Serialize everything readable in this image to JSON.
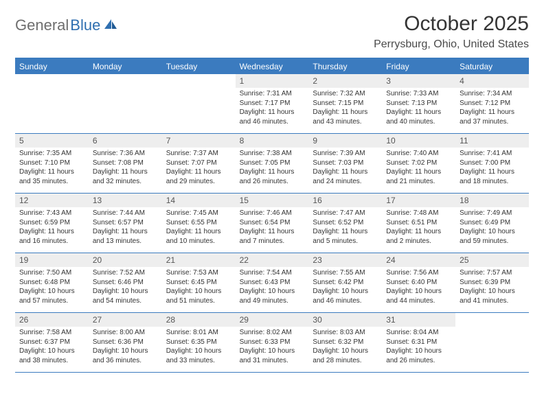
{
  "logo": {
    "part1": "General",
    "part2": "Blue"
  },
  "title": "October 2025",
  "location": "Perrysburg, Ohio, United States",
  "weekdays": [
    "Sunday",
    "Monday",
    "Tuesday",
    "Wednesday",
    "Thursday",
    "Friday",
    "Saturday"
  ],
  "colors": {
    "header_bar": "#3b7bbf",
    "daynum_bg": "#eeeeee",
    "logo_gray": "#6e6e6e",
    "logo_blue": "#2f6fb0"
  },
  "weeks": [
    [
      {
        "n": "",
        "sr": "",
        "ss": "",
        "dl": ""
      },
      {
        "n": "",
        "sr": "",
        "ss": "",
        "dl": ""
      },
      {
        "n": "",
        "sr": "",
        "ss": "",
        "dl": ""
      },
      {
        "n": "1",
        "sr": "Sunrise: 7:31 AM",
        "ss": "Sunset: 7:17 PM",
        "dl": "Daylight: 11 hours and 46 minutes."
      },
      {
        "n": "2",
        "sr": "Sunrise: 7:32 AM",
        "ss": "Sunset: 7:15 PM",
        "dl": "Daylight: 11 hours and 43 minutes."
      },
      {
        "n": "3",
        "sr": "Sunrise: 7:33 AM",
        "ss": "Sunset: 7:13 PM",
        "dl": "Daylight: 11 hours and 40 minutes."
      },
      {
        "n": "4",
        "sr": "Sunrise: 7:34 AM",
        "ss": "Sunset: 7:12 PM",
        "dl": "Daylight: 11 hours and 37 minutes."
      }
    ],
    [
      {
        "n": "5",
        "sr": "Sunrise: 7:35 AM",
        "ss": "Sunset: 7:10 PM",
        "dl": "Daylight: 11 hours and 35 minutes."
      },
      {
        "n": "6",
        "sr": "Sunrise: 7:36 AM",
        "ss": "Sunset: 7:08 PM",
        "dl": "Daylight: 11 hours and 32 minutes."
      },
      {
        "n": "7",
        "sr": "Sunrise: 7:37 AM",
        "ss": "Sunset: 7:07 PM",
        "dl": "Daylight: 11 hours and 29 minutes."
      },
      {
        "n": "8",
        "sr": "Sunrise: 7:38 AM",
        "ss": "Sunset: 7:05 PM",
        "dl": "Daylight: 11 hours and 26 minutes."
      },
      {
        "n": "9",
        "sr": "Sunrise: 7:39 AM",
        "ss": "Sunset: 7:03 PM",
        "dl": "Daylight: 11 hours and 24 minutes."
      },
      {
        "n": "10",
        "sr": "Sunrise: 7:40 AM",
        "ss": "Sunset: 7:02 PM",
        "dl": "Daylight: 11 hours and 21 minutes."
      },
      {
        "n": "11",
        "sr": "Sunrise: 7:41 AM",
        "ss": "Sunset: 7:00 PM",
        "dl": "Daylight: 11 hours and 18 minutes."
      }
    ],
    [
      {
        "n": "12",
        "sr": "Sunrise: 7:43 AM",
        "ss": "Sunset: 6:59 PM",
        "dl": "Daylight: 11 hours and 16 minutes."
      },
      {
        "n": "13",
        "sr": "Sunrise: 7:44 AM",
        "ss": "Sunset: 6:57 PM",
        "dl": "Daylight: 11 hours and 13 minutes."
      },
      {
        "n": "14",
        "sr": "Sunrise: 7:45 AM",
        "ss": "Sunset: 6:55 PM",
        "dl": "Daylight: 11 hours and 10 minutes."
      },
      {
        "n": "15",
        "sr": "Sunrise: 7:46 AM",
        "ss": "Sunset: 6:54 PM",
        "dl": "Daylight: 11 hours and 7 minutes."
      },
      {
        "n": "16",
        "sr": "Sunrise: 7:47 AM",
        "ss": "Sunset: 6:52 PM",
        "dl": "Daylight: 11 hours and 5 minutes."
      },
      {
        "n": "17",
        "sr": "Sunrise: 7:48 AM",
        "ss": "Sunset: 6:51 PM",
        "dl": "Daylight: 11 hours and 2 minutes."
      },
      {
        "n": "18",
        "sr": "Sunrise: 7:49 AM",
        "ss": "Sunset: 6:49 PM",
        "dl": "Daylight: 10 hours and 59 minutes."
      }
    ],
    [
      {
        "n": "19",
        "sr": "Sunrise: 7:50 AM",
        "ss": "Sunset: 6:48 PM",
        "dl": "Daylight: 10 hours and 57 minutes."
      },
      {
        "n": "20",
        "sr": "Sunrise: 7:52 AM",
        "ss": "Sunset: 6:46 PM",
        "dl": "Daylight: 10 hours and 54 minutes."
      },
      {
        "n": "21",
        "sr": "Sunrise: 7:53 AM",
        "ss": "Sunset: 6:45 PM",
        "dl": "Daylight: 10 hours and 51 minutes."
      },
      {
        "n": "22",
        "sr": "Sunrise: 7:54 AM",
        "ss": "Sunset: 6:43 PM",
        "dl": "Daylight: 10 hours and 49 minutes."
      },
      {
        "n": "23",
        "sr": "Sunrise: 7:55 AM",
        "ss": "Sunset: 6:42 PM",
        "dl": "Daylight: 10 hours and 46 minutes."
      },
      {
        "n": "24",
        "sr": "Sunrise: 7:56 AM",
        "ss": "Sunset: 6:40 PM",
        "dl": "Daylight: 10 hours and 44 minutes."
      },
      {
        "n": "25",
        "sr": "Sunrise: 7:57 AM",
        "ss": "Sunset: 6:39 PM",
        "dl": "Daylight: 10 hours and 41 minutes."
      }
    ],
    [
      {
        "n": "26",
        "sr": "Sunrise: 7:58 AM",
        "ss": "Sunset: 6:37 PM",
        "dl": "Daylight: 10 hours and 38 minutes."
      },
      {
        "n": "27",
        "sr": "Sunrise: 8:00 AM",
        "ss": "Sunset: 6:36 PM",
        "dl": "Daylight: 10 hours and 36 minutes."
      },
      {
        "n": "28",
        "sr": "Sunrise: 8:01 AM",
        "ss": "Sunset: 6:35 PM",
        "dl": "Daylight: 10 hours and 33 minutes."
      },
      {
        "n": "29",
        "sr": "Sunrise: 8:02 AM",
        "ss": "Sunset: 6:33 PM",
        "dl": "Daylight: 10 hours and 31 minutes."
      },
      {
        "n": "30",
        "sr": "Sunrise: 8:03 AM",
        "ss": "Sunset: 6:32 PM",
        "dl": "Daylight: 10 hours and 28 minutes."
      },
      {
        "n": "31",
        "sr": "Sunrise: 8:04 AM",
        "ss": "Sunset: 6:31 PM",
        "dl": "Daylight: 10 hours and 26 minutes."
      },
      {
        "n": "",
        "sr": "",
        "ss": "",
        "dl": ""
      }
    ]
  ]
}
